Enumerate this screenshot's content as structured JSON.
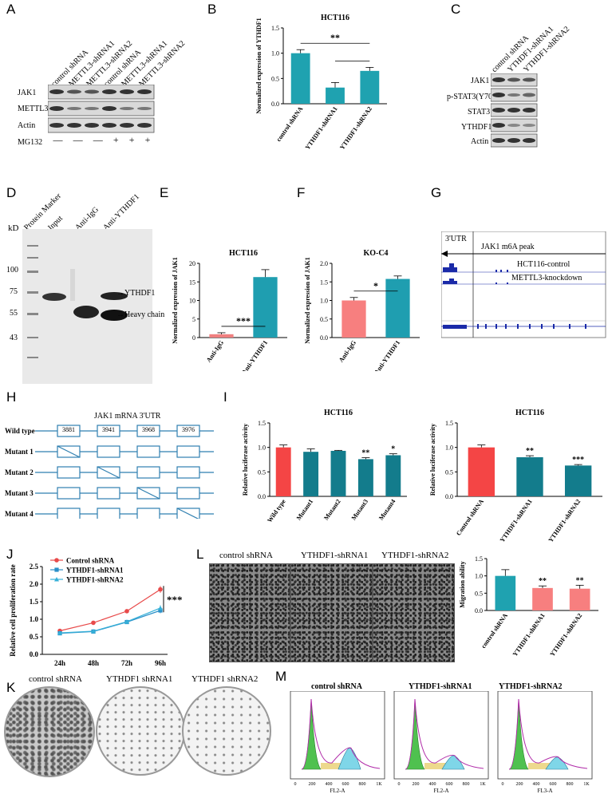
{
  "panel_labels": {
    "A": "A",
    "B": "B",
    "C": "C",
    "D": "D",
    "E": "E",
    "F": "F",
    "G": "G",
    "H": "H",
    "I": "I",
    "J": "J",
    "K": "K",
    "L": "L",
    "M": "M"
  },
  "panelA": {
    "lanes": [
      "control shRNA",
      "METTL3-shRNA1",
      "METTL3-shRNA2",
      "control shRNA",
      "METTL3-shRNA1",
      "METTL3-shRNA2"
    ],
    "rows": [
      "JAK1",
      "METTL3",
      "Actin"
    ],
    "mg132_label": "MG132",
    "mg132_signs": [
      "—",
      "—",
      "—",
      "+",
      "+",
      "+"
    ]
  },
  "panelC": {
    "lanes": [
      "control shRNA",
      "YTHDF1-shRNA1",
      "YTHDF1-shRNA2"
    ],
    "rows": [
      "JAK1",
      "p-STAT3(Y705)",
      "STAT3",
      "YTHDF1",
      "Actin"
    ]
  },
  "panelD": {
    "kd": "kD",
    "lanes": [
      "Protein Marker",
      "Input",
      "Anti-IgG",
      "Anti-YTHDF1"
    ],
    "markers": [
      "100",
      "75",
      "55",
      "43"
    ],
    "arrow1": "YTHDF1",
    "arrow2": "Heavy chain"
  },
  "panelG": {
    "utr": "3'UTR",
    "peak": "JAK1  m6A peak",
    "track1": "HCT116-control",
    "track2": "METTL3-knockdown"
  },
  "panelH": {
    "title": "JAK1 mRNA 3'UTR",
    "sites": [
      "3881",
      "3941",
      "3968",
      "3976"
    ],
    "rows": [
      "Wild type",
      "Mutant 1",
      "Mutant 2",
      "Mutant 3",
      "Mutant 4"
    ]
  },
  "panelK": {
    "labels": [
      "control shRNA",
      "YTHDF1 shRNA1",
      "YTHDF1 shRNA2"
    ]
  },
  "panelL": {
    "labels": [
      "control shRNA",
      "YTHDF1-shRNA1",
      "YTHDF1-shRNA2"
    ]
  },
  "panelM": {
    "labels": [
      "control shRNA",
      "YTHDF1-shRNA1",
      "YTHDF1-shRNA2"
    ],
    "xlabels": [
      "FL2-A",
      "FL2-A",
      "FL3-A"
    ],
    "ticks": [
      "0",
      "200",
      "400",
      "600",
      "800",
      "1K"
    ]
  },
  "chart_data": [
    {
      "id": "B",
      "type": "bar",
      "title": "HCT116",
      "ylabel": "Normalized expression of YTHDF1",
      "categories": [
        "control shRNA",
        "YTHDF1-shRNA1",
        "YTHDF1-shRNA2"
      ],
      "values": [
        1.0,
        0.32,
        0.65
      ],
      "errors": [
        0.07,
        0.1,
        0.07
      ],
      "ylim": [
        0,
        1.5
      ],
      "yticks": [
        "0.0",
        "0.5",
        "1.0",
        "1.5"
      ],
      "annotations": [
        "**"
      ],
      "color": "#1fa2b0"
    },
    {
      "id": "E",
      "type": "bar",
      "title": "HCT116",
      "ylabel": "Normalized expression of JAK1",
      "categories": [
        "Anti-IgG",
        "Anti-YTHDF1"
      ],
      "values": [
        0.9,
        16.3
      ],
      "errors": [
        0.4,
        2.0
      ],
      "ylim": [
        0,
        20
      ],
      "yticks": [
        "0",
        "5",
        "10",
        "15",
        "20"
      ],
      "annotations": [
        "***"
      ],
      "colors": [
        "#f08080",
        "#1f9eb0"
      ]
    },
    {
      "id": "F",
      "type": "bar",
      "title": "KO-C4",
      "ylabel": "Normalized expression of JAK1",
      "categories": [
        "Anti-IgG",
        "Anti-YTHDF1"
      ],
      "values": [
        1.0,
        1.58
      ],
      "errors": [
        0.08,
        0.08
      ],
      "ylim": [
        0,
        2.0
      ],
      "yticks": [
        "0.0",
        "0.5",
        "1.0",
        "1.5",
        "2.0"
      ],
      "annotations": [
        "*"
      ],
      "colors": [
        "#f77f7f",
        "#1f9eb0"
      ]
    },
    {
      "id": "I1",
      "type": "bar",
      "title": "HCT116",
      "ylabel": "Relative luciferase activity",
      "categories": [
        "Wild type",
        "Mutant1",
        "Mutant2",
        "Mutant3",
        "Mutant4"
      ],
      "values": [
        1.0,
        0.91,
        0.93,
        0.76,
        0.84
      ],
      "errors": [
        0.05,
        0.06,
        0.01,
        0.03,
        0.03
      ],
      "ylim": [
        0,
        1.5
      ],
      "yticks": [
        "0.0",
        "0.5",
        "1.0",
        "1.5"
      ],
      "sig": [
        "",
        "",
        "",
        "**",
        "*"
      ],
      "colors": [
        "#f44545",
        "#137c8c",
        "#137c8c",
        "#137c8c",
        "#137c8c"
      ]
    },
    {
      "id": "I2",
      "type": "bar",
      "title": "HCT116",
      "ylabel": "Relative luciferase activity",
      "categories": [
        "Control shRNA",
        "YTHDF1-shRNA1",
        "YTHDF1-shRNA2"
      ],
      "values": [
        1.0,
        0.8,
        0.63
      ],
      "errors": [
        0.05,
        0.03,
        0.02
      ],
      "ylim": [
        0,
        1.5
      ],
      "yticks": [
        "0.0",
        "0.5",
        "1.0",
        "1.5"
      ],
      "sig": [
        "",
        "**",
        "***"
      ],
      "colors": [
        "#f44545",
        "#137c8c",
        "#137c8c"
      ]
    },
    {
      "id": "J",
      "type": "line",
      "ylabel": "Relative cell proliferation rate",
      "x": [
        "24h",
        "48h",
        "72h",
        "96h"
      ],
      "series": [
        {
          "name": "Control shRNA",
          "values": [
            0.67,
            0.9,
            1.23,
            1.85
          ],
          "errors": [
            0.03,
            0.05,
            0.02,
            0.1
          ],
          "color": "#e84a4a"
        },
        {
          "name": "YTHDF1-shRNA1",
          "values": [
            0.6,
            0.65,
            0.92,
            1.25
          ],
          "errors": [
            0.02,
            0.02,
            0.03,
            0.08
          ],
          "color": "#2a8fc8"
        },
        {
          "name": "YTHDF1-shRNA2",
          "values": [
            0.61,
            0.66,
            0.93,
            1.32
          ],
          "errors": [
            0.02,
            0.02,
            0.03,
            0.08
          ],
          "color": "#35b0d8"
        }
      ],
      "ylim": [
        0,
        2.5
      ],
      "yticks": [
        "0.0",
        "0.5",
        "1.0",
        "1.5",
        "2.0",
        "2.5"
      ],
      "annotation": "***"
    },
    {
      "id": "L",
      "type": "bar",
      "ylabel": "Migration ability",
      "categories": [
        "control shRNA",
        "YTHDF1-shRNA1",
        "YTHDF1-shRNA2"
      ],
      "values": [
        1.0,
        0.65,
        0.63
      ],
      "errors": [
        0.18,
        0.06,
        0.1
      ],
      "ylim": [
        0,
        1.5
      ],
      "yticks": [
        "0.0",
        "0.5",
        "1.0",
        "1.5"
      ],
      "sig": [
        "",
        "**",
        "**"
      ],
      "colors": [
        "#1fa2b0",
        "#f77f7f",
        "#f77f7f"
      ]
    }
  ]
}
